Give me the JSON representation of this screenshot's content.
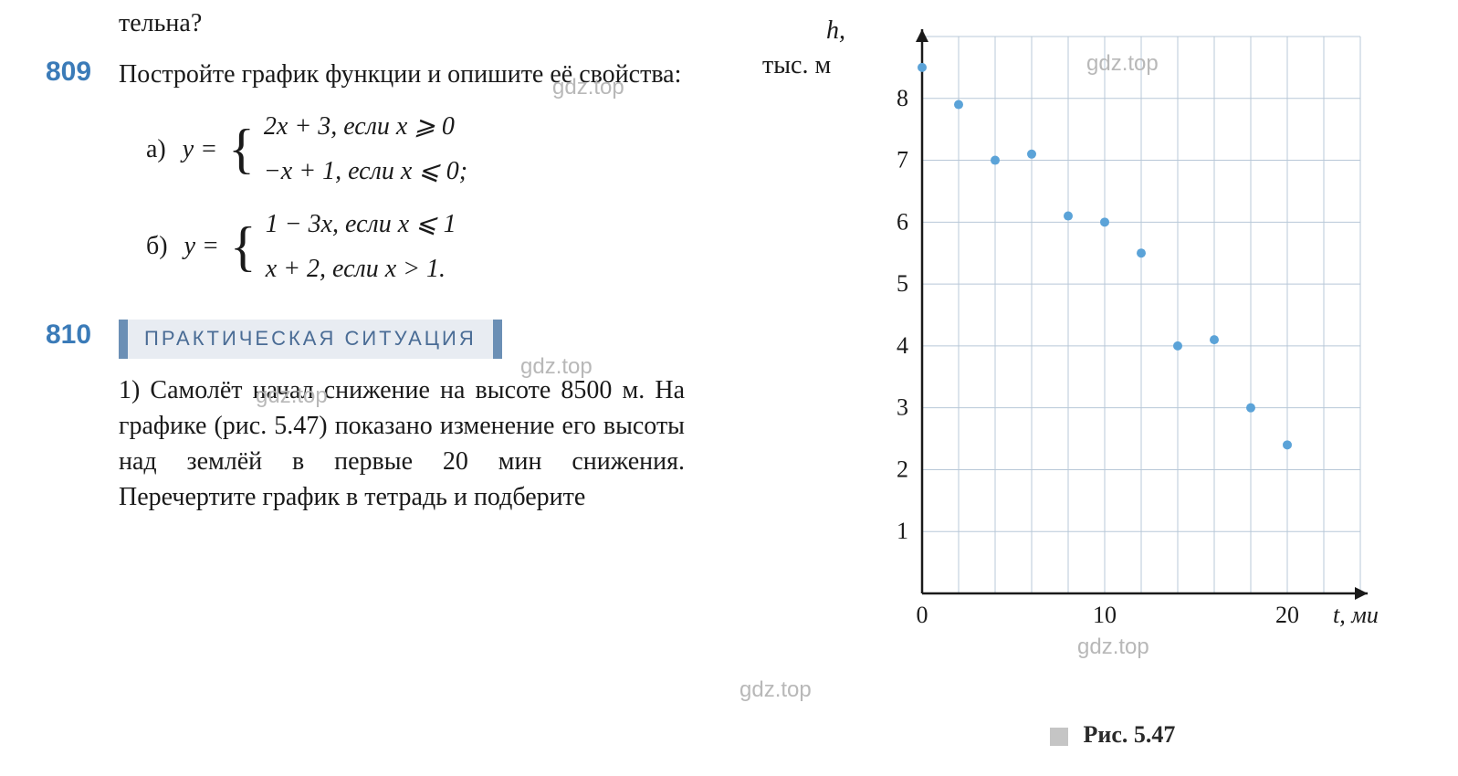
{
  "fragment_top": "тельна?",
  "problem809": {
    "number": "809",
    "text": "Постройте график функции и опишите её свойства:",
    "formula_a": {
      "label": "а)",
      "lhs": "y =",
      "piece1": "2x + 3,  если  x ⩾ 0",
      "piece2": "−x + 1,  если  x ⩽ 0;"
    },
    "formula_b": {
      "label": "б)",
      "lhs": "y =",
      "piece1": "1 − 3x,  если  x ⩽ 1",
      "piece2": "x + 2,   если  x > 1."
    }
  },
  "problem810": {
    "number": "810",
    "badge": "ПРАКТИЧЕСКАЯ СИТУАЦИЯ",
    "text": "1) Самолёт начал снижение на высоте 8500 м. На графике (рис. 5.47) показано изменение его высоты над землёй в первые 20 мин снижения. Перечертите график в тетрадь и подберите"
  },
  "chart": {
    "type": "scatter",
    "axis_y_label_top": "h,",
    "axis_y_label_unit": "тыс. м",
    "axis_x_label": "t, мин",
    "x_ticks": [
      "0",
      "10",
      "20"
    ],
    "y_ticks": [
      "1",
      "2",
      "3",
      "4",
      "5",
      "6",
      "7",
      "8"
    ],
    "xlim": [
      0,
      24
    ],
    "ylim": [
      0,
      9
    ],
    "grid_color": "#b8c8d8",
    "background_color": "#ffffff",
    "axis_color": "#1a1a1a",
    "point_color": "#5ba3d8",
    "point_radius": 5,
    "points": [
      {
        "x": 0,
        "y": 8.5
      },
      {
        "x": 2,
        "y": 7.9
      },
      {
        "x": 4,
        "y": 7.0
      },
      {
        "x": 6,
        "y": 7.1
      },
      {
        "x": 8,
        "y": 6.1
      },
      {
        "x": 10,
        "y": 6.0
      },
      {
        "x": 12,
        "y": 5.5
      },
      {
        "x": 14,
        "y": 4.0
      },
      {
        "x": 16,
        "y": 4.1
      },
      {
        "x": 18,
        "y": 3.0
      },
      {
        "x": 20,
        "y": 2.4
      }
    ]
  },
  "figure_label": "Рис. 5.47",
  "watermarks": {
    "w1": "gdz.top",
    "w2": "gdz.top",
    "w3": "gdz.top",
    "w4": "gdz.top",
    "w5": "gdz.top",
    "w6": "gdz.top"
  }
}
